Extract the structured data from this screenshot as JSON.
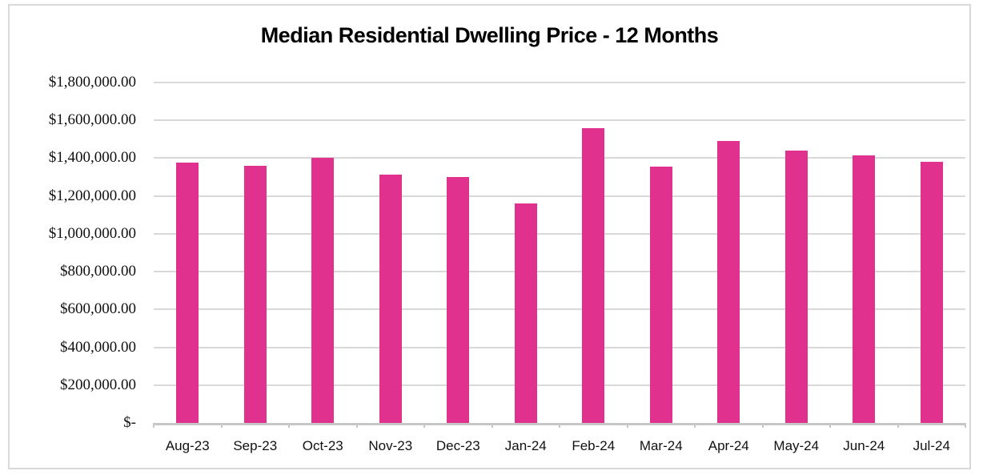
{
  "chart_data": {
    "type": "bar",
    "title": "Median Residential Dwelling Price - 12 Months",
    "xlabel": "",
    "ylabel": "",
    "categories": [
      "Aug-23",
      "Sep-23",
      "Oct-23",
      "Nov-23",
      "Dec-23",
      "Jan-24",
      "Feb-24",
      "Mar-24",
      "Apr-24",
      "May-24",
      "Jun-24",
      "Jul-24"
    ],
    "values": [
      1375000,
      1360000,
      1400000,
      1315000,
      1300000,
      1160000,
      1560000,
      1355000,
      1490000,
      1440000,
      1415000,
      1380000
    ],
    "ylim": [
      0,
      1800000
    ],
    "y_tick_interval": 200000,
    "y_tick_labels_top_to_bottom": [
      "$1,800,000.00",
      "$1,600,000.00",
      "$1,400,000.00",
      "$1,200,000.00",
      "$1,000,000.00",
      "$800,000.00",
      "$600,000.00",
      "$400,000.00",
      "$200,000.00",
      "$-"
    ],
    "grid": true,
    "legend": false,
    "colors": {
      "bar": "#E0318F",
      "gridline": "#D9D9D9",
      "axis": "#C6C6C6",
      "frame_border": "#D9D9D9",
      "text": "#111111",
      "background": "#FFFFFF"
    }
  }
}
